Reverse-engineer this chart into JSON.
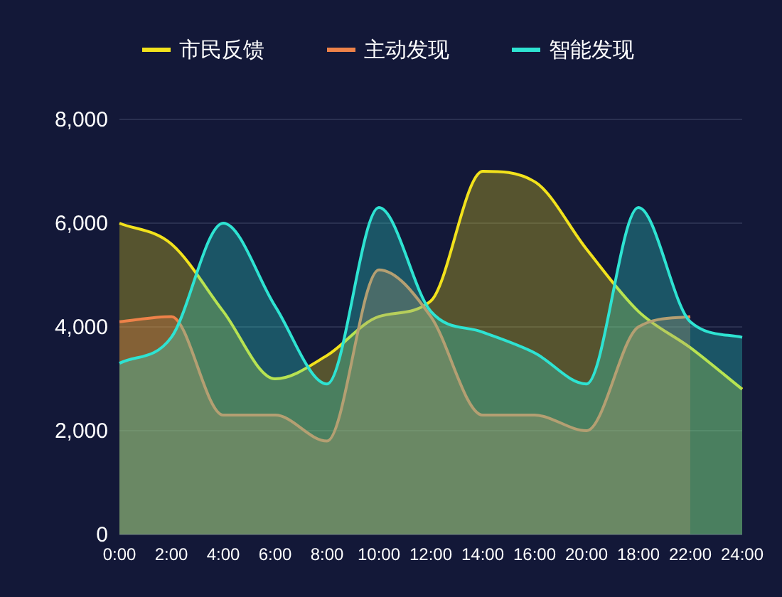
{
  "chart_data": {
    "type": "area",
    "categories": [
      "0:00",
      "2:00",
      "4:00",
      "6:00",
      "8:00",
      "10:00",
      "12:00",
      "14:00",
      "16:00",
      "20:00",
      "18:00",
      "22:00",
      "24:00"
    ],
    "series": [
      {
        "name": "市民反馈",
        "color": "#f2e21c",
        "values": [
          6000,
          5600,
          4300,
          3000,
          3450,
          4200,
          4500,
          7000,
          6800,
          5500,
          4300,
          3600,
          2800
        ]
      },
      {
        "name": "主动发现",
        "color": "#ee8249",
        "values": [
          4100,
          4200,
          2300,
          2300,
          1800,
          5100,
          4200,
          2300,
          2300,
          2000,
          4000,
          4200,
          null
        ]
      },
      {
        "name": "智能发现",
        "color": "#2ee3d2",
        "values": [
          3300,
          3800,
          6000,
          4400,
          2900,
          6300,
          4300,
          3900,
          3500,
          2900,
          6300,
          4100,
          3800
        ]
      }
    ],
    "ylim": [
      0,
      8000
    ],
    "yticks": [
      {
        "value": 0,
        "label": "0"
      },
      {
        "value": 2000,
        "label": "2,000"
      },
      {
        "value": 4000,
        "label": "4,000"
      },
      {
        "value": 6000,
        "label": "6,000"
      },
      {
        "value": 8000,
        "label": "8,000"
      }
    ],
    "grid": "y",
    "legend": "top",
    "line_style": "solid",
    "marker": "none"
  }
}
